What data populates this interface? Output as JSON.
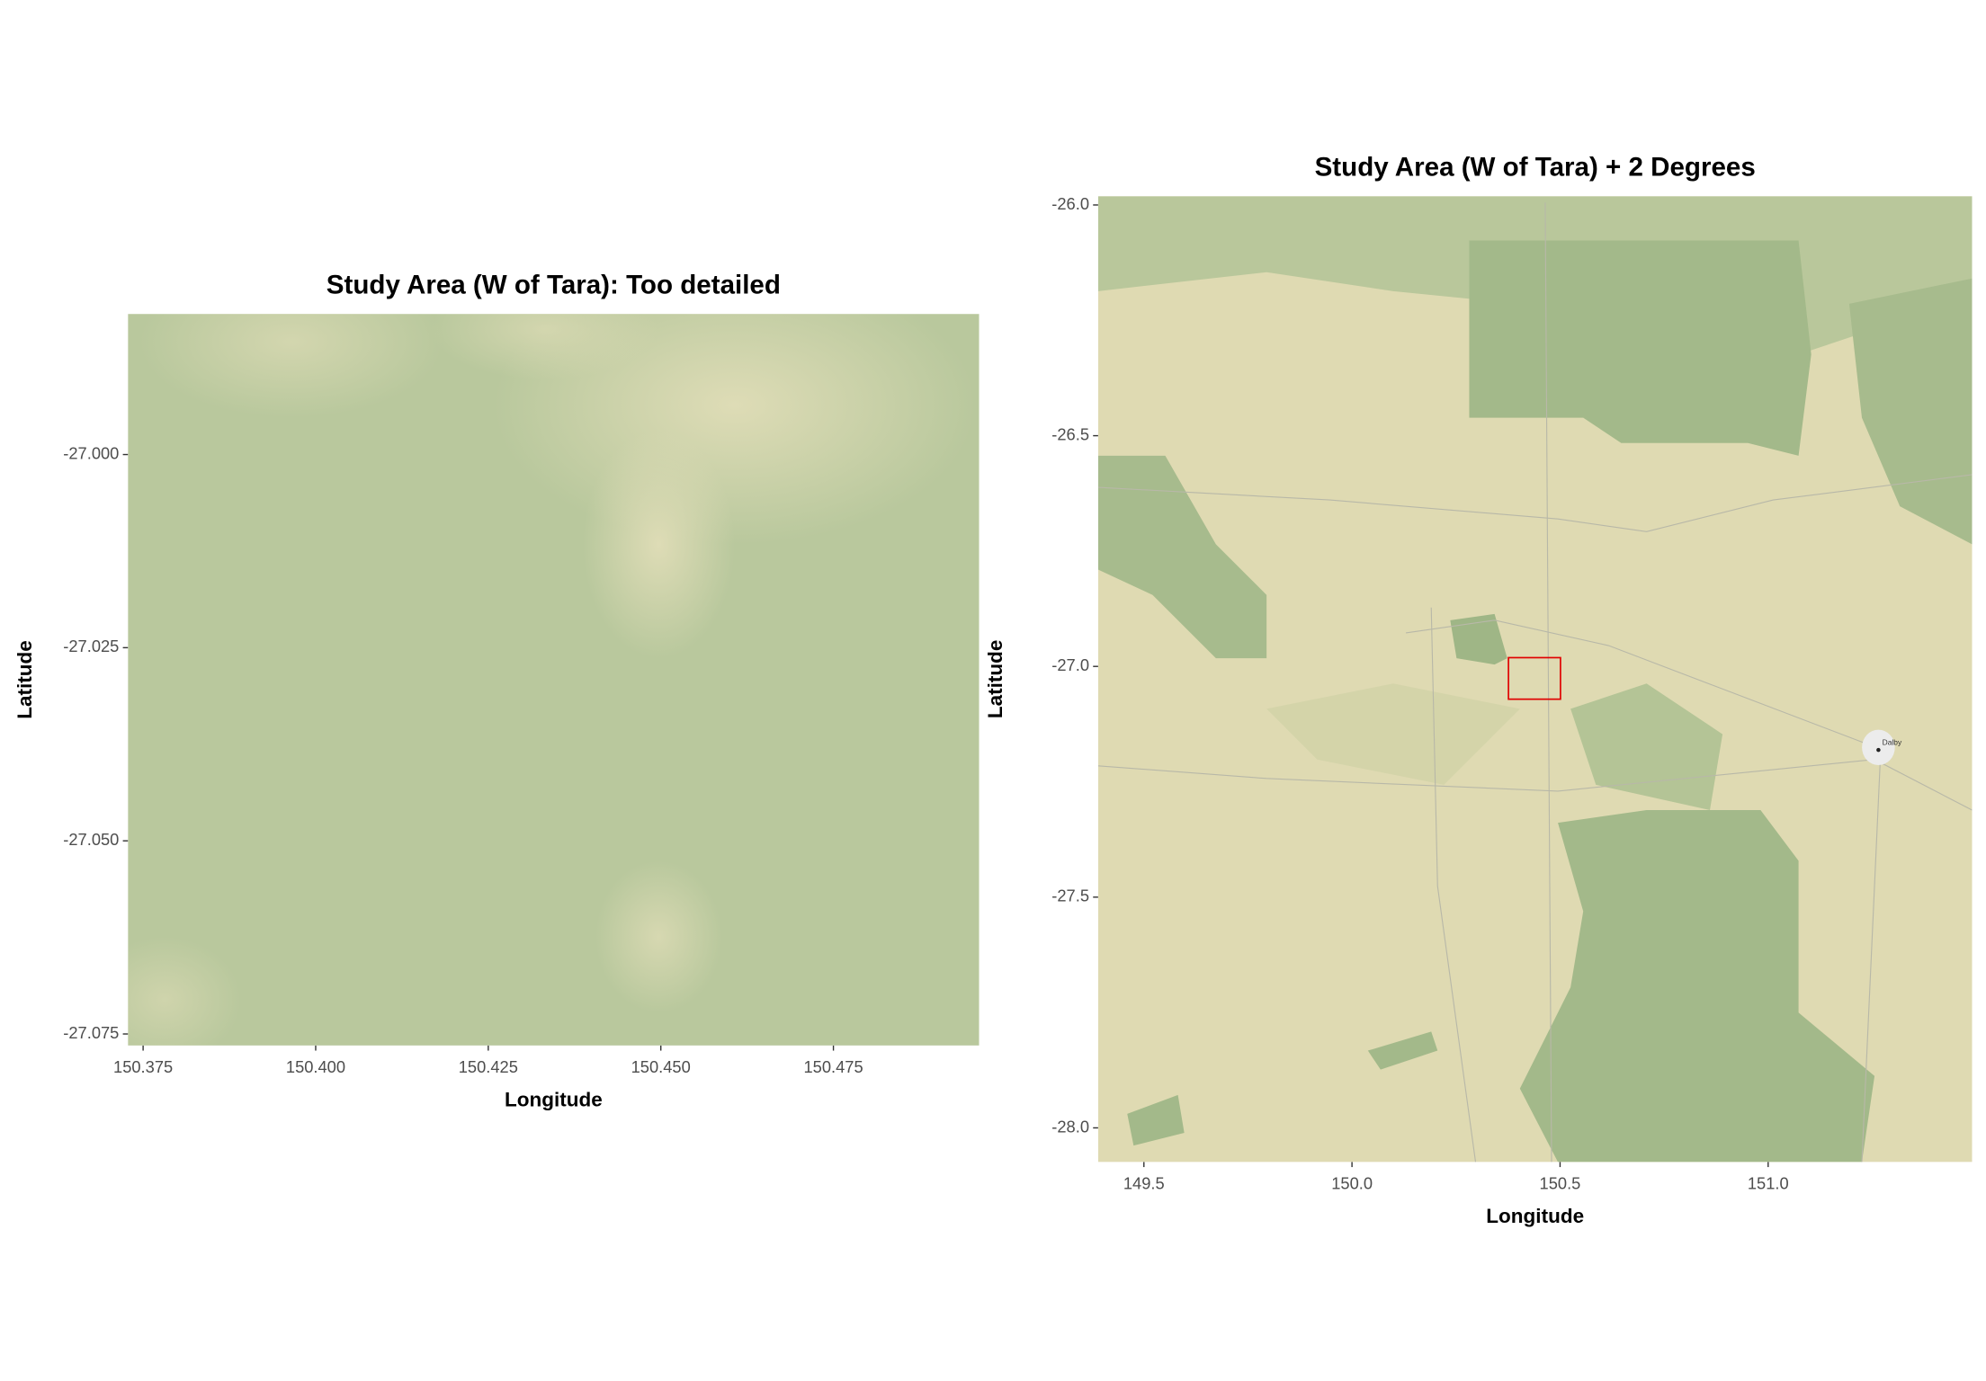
{
  "chart_data": [
    {
      "type": "map",
      "title": "Study Area (W of Tara): Too detailed",
      "x_label": "Longitude",
      "y_label": "Latitude",
      "xlim": [
        150.3728,
        150.4961
      ],
      "ylim": [
        -27.0765,
        -26.9818
      ],
      "xticks": [
        150.375,
        {
          "value": 150.4,
          "label": "150.400"
        },
        150.425,
        {
          "value": 150.45,
          "label": "150.450"
        },
        150.475
      ],
      "yticks": [
        {
          "value": -27,
          "label": "-27.000"
        },
        -27.025,
        {
          "value": -27.05,
          "label": "-27.050"
        },
        -27.075
      ]
    },
    {
      "type": "map",
      "title": "Study Area (W of Tara) + 2 Degrees",
      "x_label": "Longitude",
      "y_label": "Latitude",
      "xlim": [
        149.39,
        151.49
      ],
      "ylim": [
        -28.074,
        -25.981
      ],
      "xticks": [
        149.5,
        {
          "value": 150,
          "label": "150.0"
        },
        150.5,
        {
          "value": 151,
          "label": "151.0"
        }
      ],
      "yticks": [
        {
          "value": -26,
          "label": "-26.0"
        },
        -26.5,
        {
          "value": -27,
          "label": "-27.0"
        },
        -27.5,
        {
          "value": -28,
          "label": "-28.0"
        }
      ],
      "study_area": {
        "x": [
          150.376,
          150.501
        ],
        "y": [
          -27.071,
          -26.981
        ],
        "color": "#e00000"
      },
      "annotations": [
        {
          "label": "Dalby",
          "x": 151.265,
          "y": -27.181
        }
      ]
    }
  ]
}
